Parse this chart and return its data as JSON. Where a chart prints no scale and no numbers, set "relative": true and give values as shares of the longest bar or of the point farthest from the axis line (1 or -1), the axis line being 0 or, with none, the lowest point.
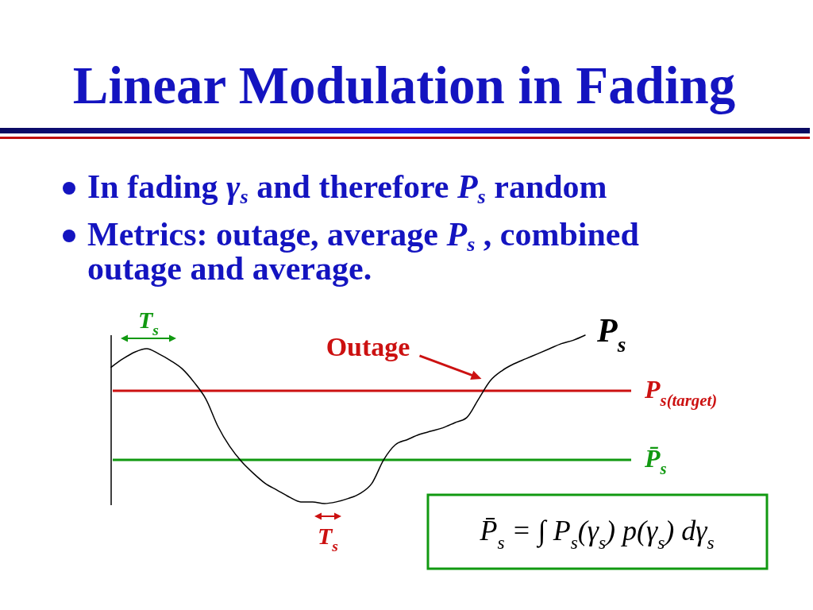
{
  "chart_data": {
    "type": "line",
    "title": "Linear Modulation in Fading",
    "annotations": [
      "In fading γ$_{s}$ and therefore P$_{s}$ random",
      "Metrics: outage, average P$_{s}$ , combined outage and average.",
      {
        "text": "Outage",
        "y": 0.67
      },
      "T$_{s}$",
      "T$_{s}$",
      "P̄$_{s}$ = ∫ P$_{s}$(γ$_{s}$) p(γ$_{s}$) dγ$_{s}$"
    ],
    "relative": true,
    "categories": [
      null,
      null,
      null,
      null,
      null,
      null,
      null,
      null,
      null,
      null,
      null,
      null,
      null,
      null,
      null,
      null,
      null,
      null,
      null,
      null,
      null,
      null,
      null,
      null,
      null,
      null,
      null,
      null,
      null,
      null,
      null,
      null,
      null,
      null,
      null,
      null,
      null,
      null,
      null,
      null,
      null
    ],
    "series": [
      {
        "name": "P$_{s}$",
        "color": "#000000",
        "values": [
          0.81,
          0.86,
          0.9,
          0.92,
          0.89,
          0.85,
          0.8,
          0.72,
          0.62,
          0.46,
          0.34,
          0.25,
          0.18,
          0.12,
          0.08,
          0.04,
          0.01,
          0.01,
          0,
          0.01,
          0.03,
          0.06,
          0.12,
          0.26,
          0.35,
          0.38,
          0.41,
          0.43,
          0.45,
          0.48,
          0.51,
          0.62,
          0.73,
          0.79,
          0.83,
          0.86,
          0.89,
          0.92,
          0.95,
          0.97,
          1
        ]
      }
    ],
    "ref_lines": [
      {
        "axis": "y",
        "value": 0.67,
        "label": "P$_{s(target)}$",
        "color": "#cc1111"
      },
      {
        "axis": "y",
        "value": 0.26,
        "label": "P̄$_{s}$",
        "color": "#119911"
      }
    ]
  }
}
